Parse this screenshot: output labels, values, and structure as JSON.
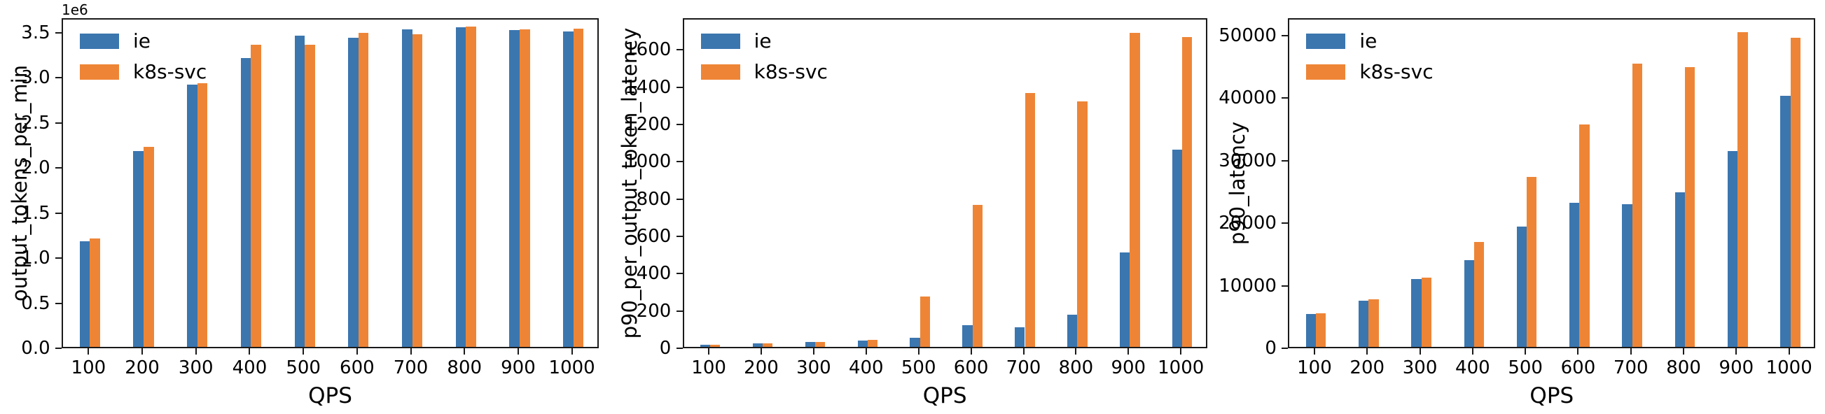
{
  "colors": {
    "series": {
      "ie": "#3b76af",
      "k8s-svc": "#ee8536"
    },
    "spine": "#1a1a1a",
    "text": "#000000",
    "background": "#ffffff"
  },
  "legend": {
    "position": "upper left",
    "entries": [
      "ie",
      "k8s-svc"
    ]
  },
  "chart_data": [
    {
      "type": "bar",
      "title": "",
      "xlabel": "QPS",
      "ylabel": "output_tokens_per_min",
      "offset_text": "1e6",
      "categories": [
        "100",
        "200",
        "300",
        "400",
        "500",
        "600",
        "700",
        "800",
        "900",
        "1000"
      ],
      "series": [
        {
          "name": "ie",
          "values": [
            1170000,
            2170000,
            2910000,
            3200000,
            3450000,
            3430000,
            3520000,
            3540000,
            3510000,
            3500000
          ]
        },
        {
          "name": "k8s-svc",
          "values": [
            1200000,
            2220000,
            2920000,
            3350000,
            3350000,
            3480000,
            3470000,
            3550000,
            3520000,
            3530000
          ]
        }
      ],
      "ylim": [
        0,
        3660000
      ],
      "yticks": {
        "values": [
          0,
          500000,
          1000000,
          1500000,
          2000000,
          2500000,
          3000000,
          3500000
        ],
        "labels": [
          "0.0",
          "0.5",
          "1.0",
          "1.5",
          "2.0",
          "2.5",
          "3.0",
          "3.5"
        ]
      },
      "grid": false,
      "legend_position": "upper left"
    },
    {
      "type": "bar",
      "title": "",
      "xlabel": "QPS",
      "ylabel": "p90_per_output_token_latency",
      "offset_text": "",
      "categories": [
        "100",
        "200",
        "300",
        "400",
        "500",
        "600",
        "700",
        "800",
        "900",
        "1000"
      ],
      "series": [
        {
          "name": "ie",
          "values": [
            10,
            17,
            25,
            33,
            48,
            117,
            105,
            172,
            505,
            1057
          ]
        },
        {
          "name": "k8s-svc",
          "values": [
            10,
            18,
            25,
            38,
            270,
            760,
            1360,
            1315,
            1685,
            1660
          ]
        }
      ],
      "ylim": [
        0,
        1770
      ],
      "yticks": {
        "values": [
          0,
          200,
          400,
          600,
          800,
          1000,
          1200,
          1400,
          1600
        ],
        "labels": [
          "0",
          "200",
          "400",
          "600",
          "800",
          "1000",
          "1200",
          "1400",
          "1600"
        ]
      },
      "grid": false,
      "legend_position": "upper left"
    },
    {
      "type": "bar",
      "title": "",
      "xlabel": "QPS",
      "ylabel": "p90_latency",
      "offset_text": "",
      "categories": [
        "100",
        "200",
        "300",
        "400",
        "500",
        "600",
        "700",
        "800",
        "900",
        "1000"
      ],
      "series": [
        {
          "name": "ie",
          "values": [
            5300,
            7400,
            10900,
            13900,
            19200,
            23000,
            22800,
            24700,
            31300,
            40200
          ]
        },
        {
          "name": "k8s-svc",
          "values": [
            5400,
            7600,
            11100,
            16800,
            27200,
            35600,
            45300,
            44800,
            50300,
            49400
          ]
        }
      ],
      "ylim": [
        0,
        52800
      ],
      "yticks": {
        "values": [
          0,
          10000,
          20000,
          30000,
          40000,
          50000
        ],
        "labels": [
          "0",
          "10000",
          "20000",
          "30000",
          "40000",
          "50000"
        ]
      },
      "grid": false,
      "legend_position": "upper left"
    }
  ]
}
